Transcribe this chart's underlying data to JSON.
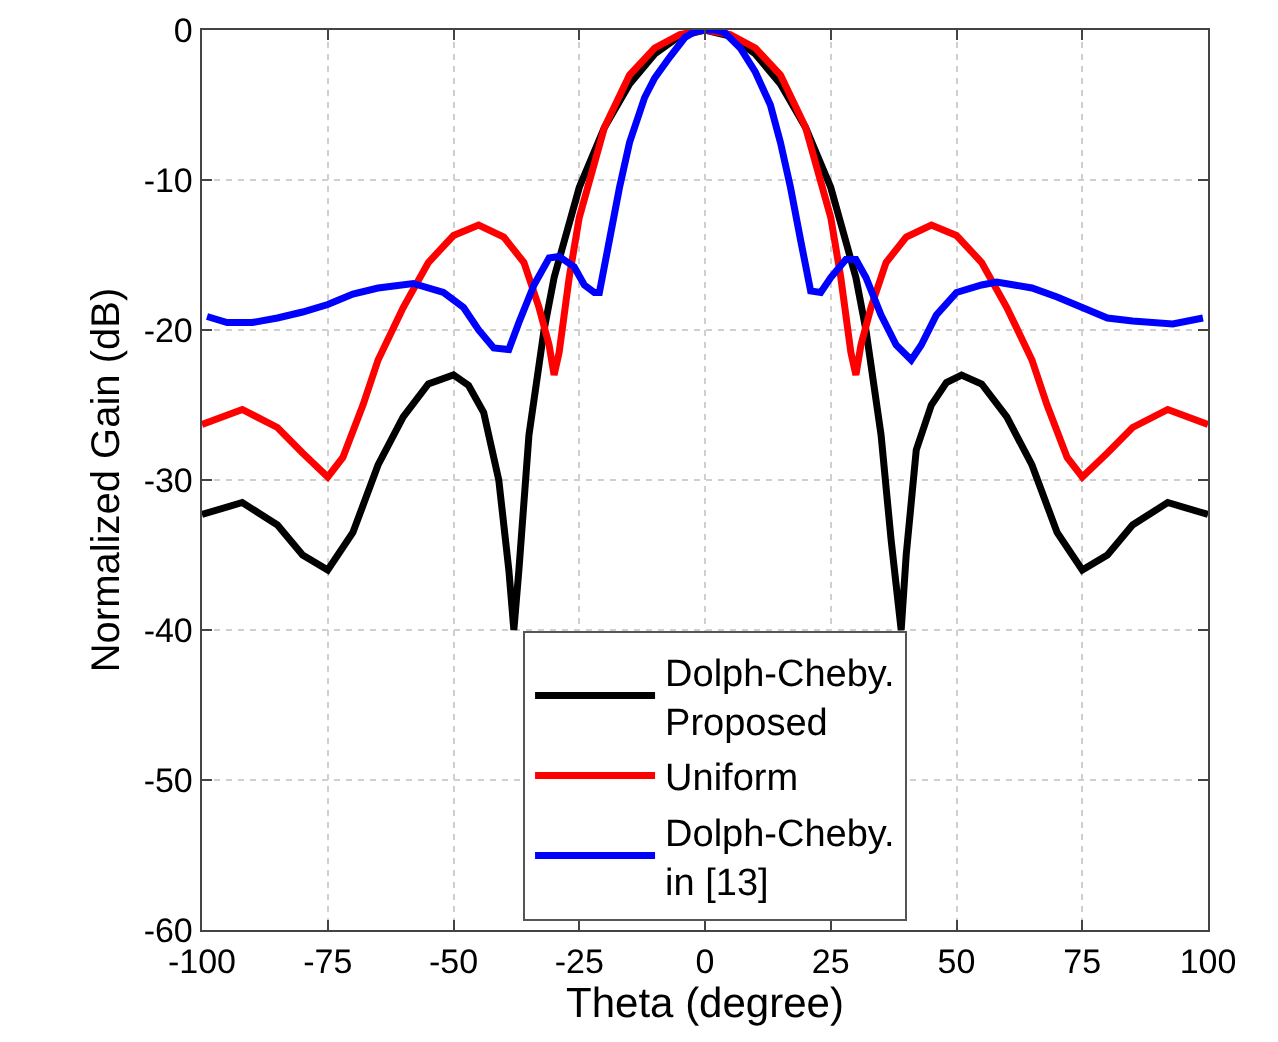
{
  "chart_data": {
    "type": "line",
    "xlabel": "Theta (degree)",
    "ylabel": "Normalized Gain (dB)",
    "xlim": [
      -100,
      100
    ],
    "xticks": [
      -100,
      -75,
      -50,
      -25,
      0,
      25,
      50,
      75,
      100
    ],
    "ylim": [
      -60,
      0
    ],
    "yticks": [
      -60,
      -50,
      -40,
      -30,
      -20,
      -10,
      0
    ],
    "grid": true,
    "legend": "bottom",
    "line_style": "solid",
    "marker": "none",
    "series": [
      {
        "name": "Dolph-Cheby.\nProposed",
        "color": "#000000",
        "x": [
          -100,
          -92,
          -85,
          -80,
          -75,
          -70,
          -65,
          -60,
          -55,
          -50,
          -47,
          -44,
          -41,
          -39,
          -38,
          -37,
          -35,
          -32,
          -30,
          -25,
          -20,
          -15,
          -10,
          -5,
          0,
          5,
          10,
          15,
          20,
          25,
          30,
          32,
          35,
          37,
          38,
          39,
          40,
          42,
          45,
          48,
          51,
          55,
          60,
          65,
          70,
          75,
          80,
          85,
          92,
          100
        ],
        "values": [
          -32.3,
          -31.5,
          -33,
          -35,
          -36,
          -33.5,
          -29,
          -25.8,
          -23.6,
          -23,
          -23.7,
          -25.5,
          -30,
          -36,
          -40,
          -36,
          -27,
          -20,
          -16.5,
          -10.5,
          -6.5,
          -3.6,
          -1.6,
          -0.4,
          0,
          -0.4,
          -1.6,
          -3.6,
          -6.5,
          -10.5,
          -16.5,
          -20,
          -27,
          -34,
          -37,
          -40,
          -35,
          -28,
          -25,
          -23.5,
          -23,
          -23.6,
          -25.8,
          -29,
          -33.5,
          -36,
          -35,
          -33,
          -31.5,
          -32.3
        ]
      },
      {
        "name": "Uniform",
        "color": "#ff0000",
        "x": [
          -100,
          -92,
          -85,
          -80,
          -75,
          -72,
          -68,
          -65,
          -60,
          -55,
          -50,
          -45,
          -40,
          -36,
          -33,
          -31,
          -30,
          -29,
          -27,
          -25,
          -20,
          -15,
          -10,
          -5,
          0,
          5,
          10,
          15,
          20,
          25,
          27,
          29,
          30,
          31,
          33,
          36,
          40,
          45,
          50,
          55,
          60,
          65,
          68,
          72,
          75,
          80,
          85,
          92,
          100
        ],
        "values": [
          -26.3,
          -25.3,
          -26.5,
          -28.2,
          -29.8,
          -28.5,
          -25,
          -22,
          -18.5,
          -15.5,
          -13.7,
          -13,
          -13.8,
          -15.5,
          -18.5,
          -21,
          -23,
          -21.5,
          -16.5,
          -12.5,
          -6.5,
          -3,
          -1.2,
          -0.3,
          0,
          -0.3,
          -1.2,
          -3,
          -6.5,
          -12.5,
          -16.5,
          -21.5,
          -23,
          -21,
          -18.5,
          -15.5,
          -13.8,
          -13,
          -13.7,
          -15.5,
          -18.5,
          -22,
          -25,
          -28.5,
          -29.8,
          -28.2,
          -26.5,
          -25.3,
          -26.3
        ]
      },
      {
        "name": "Dolph-Cheby.\nin [13]",
        "color": "#0000ff",
        "x": [
          -99,
          -95,
          -90,
          -85,
          -80,
          -75,
          -70,
          -65,
          -58,
          -52,
          -48,
          -45,
          -42,
          -39,
          -37,
          -34,
          -31,
          -29,
          -26,
          -24,
          -22,
          -21,
          -19,
          -17,
          -15,
          -12,
          -10,
          -7,
          -4,
          -2,
          0,
          2,
          4,
          7,
          10,
          13,
          15,
          17,
          19,
          21,
          23,
          25,
          28,
          30,
          32,
          35,
          38,
          41,
          43,
          46,
          50,
          55,
          58,
          65,
          70,
          75,
          80,
          85,
          93,
          99
        ],
        "values": [
          -19.1,
          -19.5,
          -19.5,
          -19.2,
          -18.8,
          -18.3,
          -17.6,
          -17.2,
          -16.9,
          -17.5,
          -18.5,
          -20,
          -21.2,
          -21.3,
          -19.5,
          -17,
          -15.2,
          -15.1,
          -15.8,
          -17,
          -17.5,
          -17.5,
          -14,
          -10.5,
          -7.5,
          -4.5,
          -3.2,
          -1.8,
          -0.5,
          -0.1,
          0,
          0,
          -0.2,
          -1.2,
          -2.8,
          -5,
          -7.5,
          -10.5,
          -14,
          -17.4,
          -17.5,
          -16.5,
          -15.3,
          -15.3,
          -16.5,
          -19,
          -21,
          -22,
          -21,
          -19,
          -17.5,
          -17,
          -16.8,
          -17.2,
          -17.8,
          -18.5,
          -19.2,
          -19.4,
          -19.6,
          -19.2
        ]
      }
    ]
  }
}
